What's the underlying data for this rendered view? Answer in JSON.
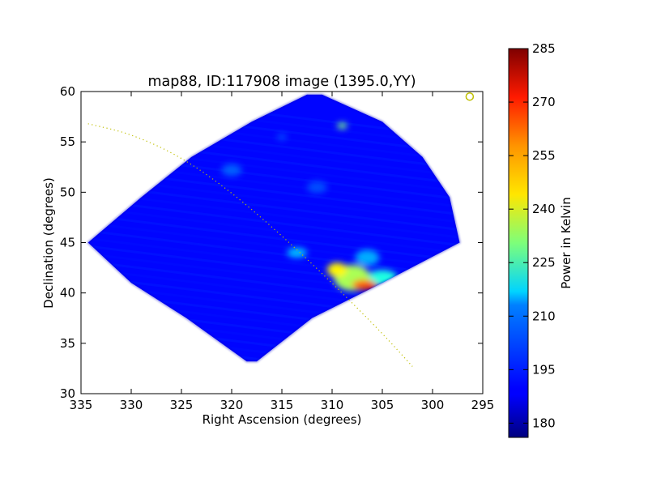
{
  "chart_data": {
    "type": "heatmap",
    "title": "map88, ID:117908 image (1395.0,YY)",
    "xlabel": "Right Ascension (degrees)",
    "ylabel": "Declination (degrees)",
    "colorbar_label": "Power in Kelvin",
    "xlim": [
      335,
      295
    ],
    "ylim": [
      30,
      60
    ],
    "xticks": [
      335,
      330,
      325,
      320,
      315,
      310,
      305,
      300,
      295
    ],
    "yticks": [
      30,
      35,
      40,
      45,
      50,
      55,
      60
    ],
    "colorbar_range": [
      176,
      285
    ],
    "colorbar_ticks": [
      180,
      195,
      210,
      225,
      240,
      255,
      270,
      285
    ],
    "colormap": "jet",
    "background_level_K": 190,
    "grid": false,
    "coverage_outline_radec": [
      [
        334.3,
        45.0
      ],
      [
        329,
        49.5
      ],
      [
        324,
        53.5
      ],
      [
        318,
        57.0
      ],
      [
        312.5,
        59.7
      ],
      [
        311,
        59.7
      ],
      [
        305,
        57.0
      ],
      [
        301,
        53.5
      ],
      [
        298.3,
        49.5
      ],
      [
        297.3,
        45.0
      ],
      [
        305,
        41.0
      ],
      [
        312,
        37.5
      ],
      [
        317.5,
        33.2
      ],
      [
        318.5,
        33.2
      ],
      [
        324.5,
        37.5
      ],
      [
        330,
        41.0
      ]
    ],
    "hotspots": [
      {
        "ra": 308.0,
        "dec": 41.5,
        "sigma_ra": 1.8,
        "sigma_dec": 1.3,
        "kelvin": 235
      },
      {
        "ra": 309.5,
        "dec": 42.3,
        "sigma_ra": 1.0,
        "sigma_dec": 0.7,
        "kelvin": 245
      },
      {
        "ra": 306.8,
        "dec": 40.8,
        "sigma_ra": 1.2,
        "sigma_dec": 0.5,
        "kelvin": 262
      },
      {
        "ra": 306.0,
        "dec": 40.5,
        "sigma_ra": 0.6,
        "sigma_dec": 0.35,
        "kelvin": 275
      },
      {
        "ra": 309.0,
        "dec": 56.6,
        "sigma_ra": 0.5,
        "sigma_dec": 0.3,
        "kelvin": 230
      },
      {
        "ra": 313.5,
        "dec": 44.0,
        "sigma_ra": 1.0,
        "sigma_dec": 0.5,
        "kelvin": 210
      },
      {
        "ra": 305.0,
        "dec": 41.5,
        "sigma_ra": 1.5,
        "sigma_dec": 0.8,
        "kelvin": 220
      },
      {
        "ra": 306.5,
        "dec": 43.5,
        "sigma_ra": 1.2,
        "sigma_dec": 0.8,
        "kelvin": 208
      },
      {
        "ra": 320.0,
        "dec": 52.2,
        "sigma_ra": 1.0,
        "sigma_dec": 0.6,
        "kelvin": 200
      },
      {
        "ra": 311.5,
        "dec": 50.5,
        "sigma_ra": 1.0,
        "sigma_dec": 0.6,
        "kelvin": 198
      },
      {
        "ra": 315.0,
        "dec": 55.5,
        "sigma_ra": 0.5,
        "sigma_dec": 0.3,
        "kelvin": 198
      }
    ],
    "overlays": [
      {
        "type": "dotted-curve",
        "color": "#bfbf00",
        "points": [
          [
            334.3,
            56.8
          ],
          [
            330,
            55.8
          ],
          [
            325,
            53.5
          ],
          [
            320,
            50.0
          ],
          [
            315,
            45.7
          ],
          [
            310,
            41.0
          ],
          [
            305,
            36.0
          ],
          [
            302,
            32.7
          ]
        ]
      },
      {
        "type": "open-circle-marker",
        "color": "#bfbf00",
        "ra": 296.3,
        "dec": 59.5
      }
    ]
  }
}
